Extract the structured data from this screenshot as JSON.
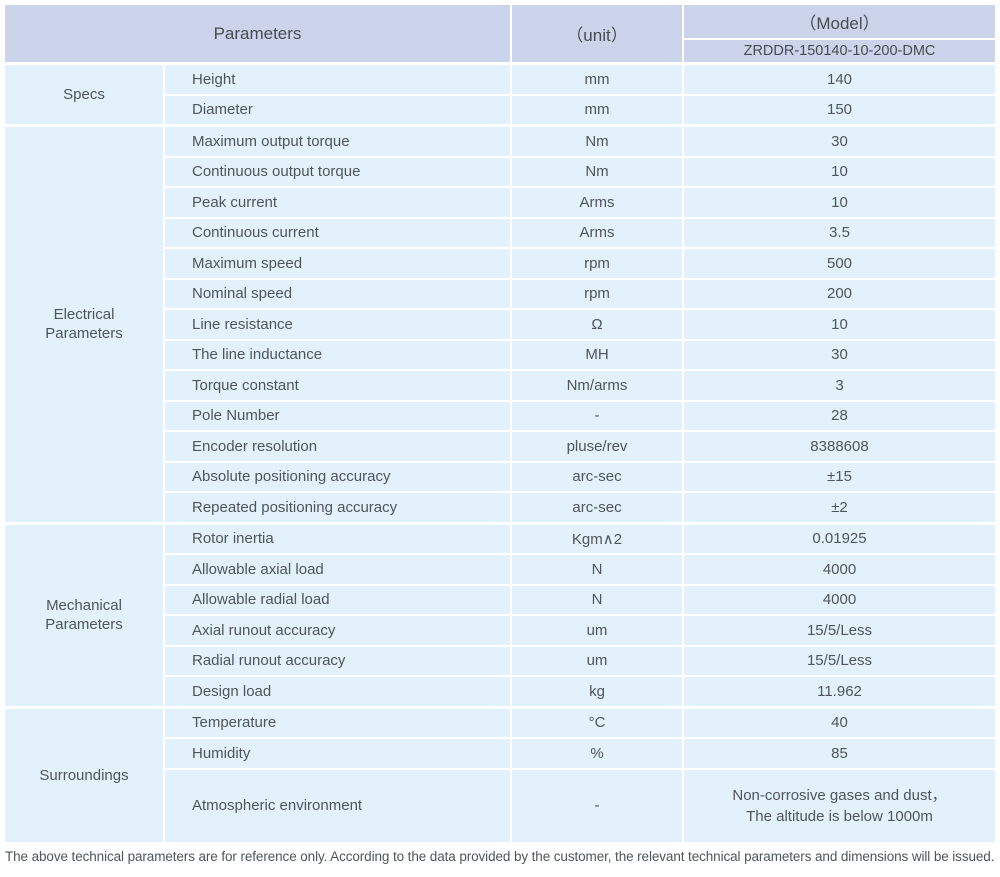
{
  "header": {
    "parameters": "Parameters",
    "unit": "（unit）",
    "model": "（Model）",
    "model_code": "ZRDDR-150140-10-200-DMC"
  },
  "sections": [
    {
      "group": "Specs",
      "rows": [
        {
          "label": "Height",
          "unit": "mm",
          "value": "140"
        },
        {
          "label": "Diameter",
          "unit": "mm",
          "value": "150"
        }
      ]
    },
    {
      "group": "Electrical Parameters",
      "rows": [
        {
          "label": "Maximum output torque",
          "unit": "Nm",
          "value": "30"
        },
        {
          "label": "Continuous output torque",
          "unit": "Nm",
          "value": "10"
        },
        {
          "label": "Peak current",
          "unit": "Arms",
          "value": "10"
        },
        {
          "label": "Continuous current",
          "unit": "Arms",
          "value": "3.5"
        },
        {
          "label": "Maximum speed",
          "unit": "rpm",
          "value": "500"
        },
        {
          "label": "Nominal speed",
          "unit": "rpm",
          "value": "200"
        },
        {
          "label": "Line resistance",
          "unit": "Ω",
          "value": "10"
        },
        {
          "label": "The line inductance",
          "unit": "MH",
          "value": "30"
        },
        {
          "label": "Torque constant",
          "unit": "Nm/arms",
          "value": "3"
        },
        {
          "label": "Pole Number",
          "unit": "-",
          "value": "28"
        },
        {
          "label": "Encoder resolution",
          "unit": "pluse/rev",
          "value": "8388608"
        },
        {
          "label": "Absolute positioning accuracy",
          "unit": "arc-sec",
          "value": "±15"
        },
        {
          "label": "Repeated positioning accuracy",
          "unit": "arc-sec",
          "value": "±2"
        }
      ]
    },
    {
      "group": "Mechanical Parameters",
      "rows": [
        {
          "label": "Rotor inertia",
          "unit": "Kgm∧2",
          "value": "0.01925"
        },
        {
          "label": "Allowable axial load",
          "unit": "N",
          "value": "4000"
        },
        {
          "label": "Allowable radial load",
          "unit": "N",
          "value": "4000"
        },
        {
          "label": "Axial runout accuracy",
          "unit": "um",
          "value": "15/5/Less"
        },
        {
          "label": "Radial runout accuracy",
          "unit": "um",
          "value": "15/5/Less"
        },
        {
          "label": "Design load",
          "unit": "kg",
          "value": "11.962"
        }
      ]
    },
    {
      "group": "Surroundings",
      "rows": [
        {
          "label": "Temperature",
          "unit": "°C",
          "value": "40"
        },
        {
          "label": "Humidity",
          "unit": "%",
          "value": "85"
        },
        {
          "label": "Atmospheric environment",
          "unit": "-",
          "value": "Non-corrosive gases and dust，\nThe altitude is below 1000m"
        }
      ]
    }
  ],
  "footnote": "The above technical parameters are for reference only. According to the data provided by the customer, the relevant technical parameters and dimensions will be issued.",
  "colors": {
    "header_bg": "#cbd4ea",
    "cell_bg": "#e2f1fb",
    "separator": "#ffffff",
    "text": "#50555b"
  }
}
